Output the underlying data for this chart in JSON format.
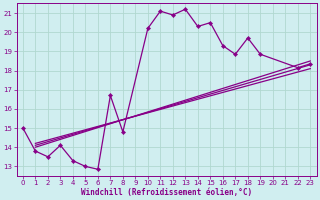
{
  "xlabel": "Windchill (Refroidissement éolien,°C)",
  "bg_color": "#d0eef0",
  "grid_color": "#b0d8d0",
  "line_color": "#880088",
  "xlim": [
    -0.5,
    23.5
  ],
  "ylim": [
    12.5,
    21.5
  ],
  "xticks": [
    0,
    1,
    2,
    3,
    4,
    5,
    6,
    7,
    8,
    9,
    10,
    11,
    12,
    13,
    14,
    15,
    16,
    17,
    18,
    19,
    20,
    21,
    22,
    23
  ],
  "yticks": [
    13,
    14,
    15,
    16,
    17,
    18,
    19,
    20,
    21
  ],
  "main_line": {
    "x": [
      0,
      1,
      2,
      3,
      4,
      5,
      6,
      7,
      8,
      10,
      11,
      12,
      13,
      14,
      15,
      16,
      17,
      18,
      19,
      22,
      23
    ],
    "y": [
      15.0,
      13.8,
      13.5,
      14.1,
      13.3,
      13.0,
      12.85,
      16.7,
      14.8,
      20.2,
      21.1,
      20.9,
      21.2,
      20.3,
      20.5,
      19.3,
      18.85,
      19.7,
      18.85,
      18.15,
      18.35
    ]
  },
  "straight_lines": [
    {
      "x": [
        1,
        23
      ],
      "y": [
        14.0,
        18.5
      ]
    },
    {
      "x": [
        1,
        23
      ],
      "y": [
        14.1,
        18.3
      ]
    },
    {
      "x": [
        1,
        23
      ],
      "y": [
        14.2,
        18.1
      ]
    }
  ]
}
